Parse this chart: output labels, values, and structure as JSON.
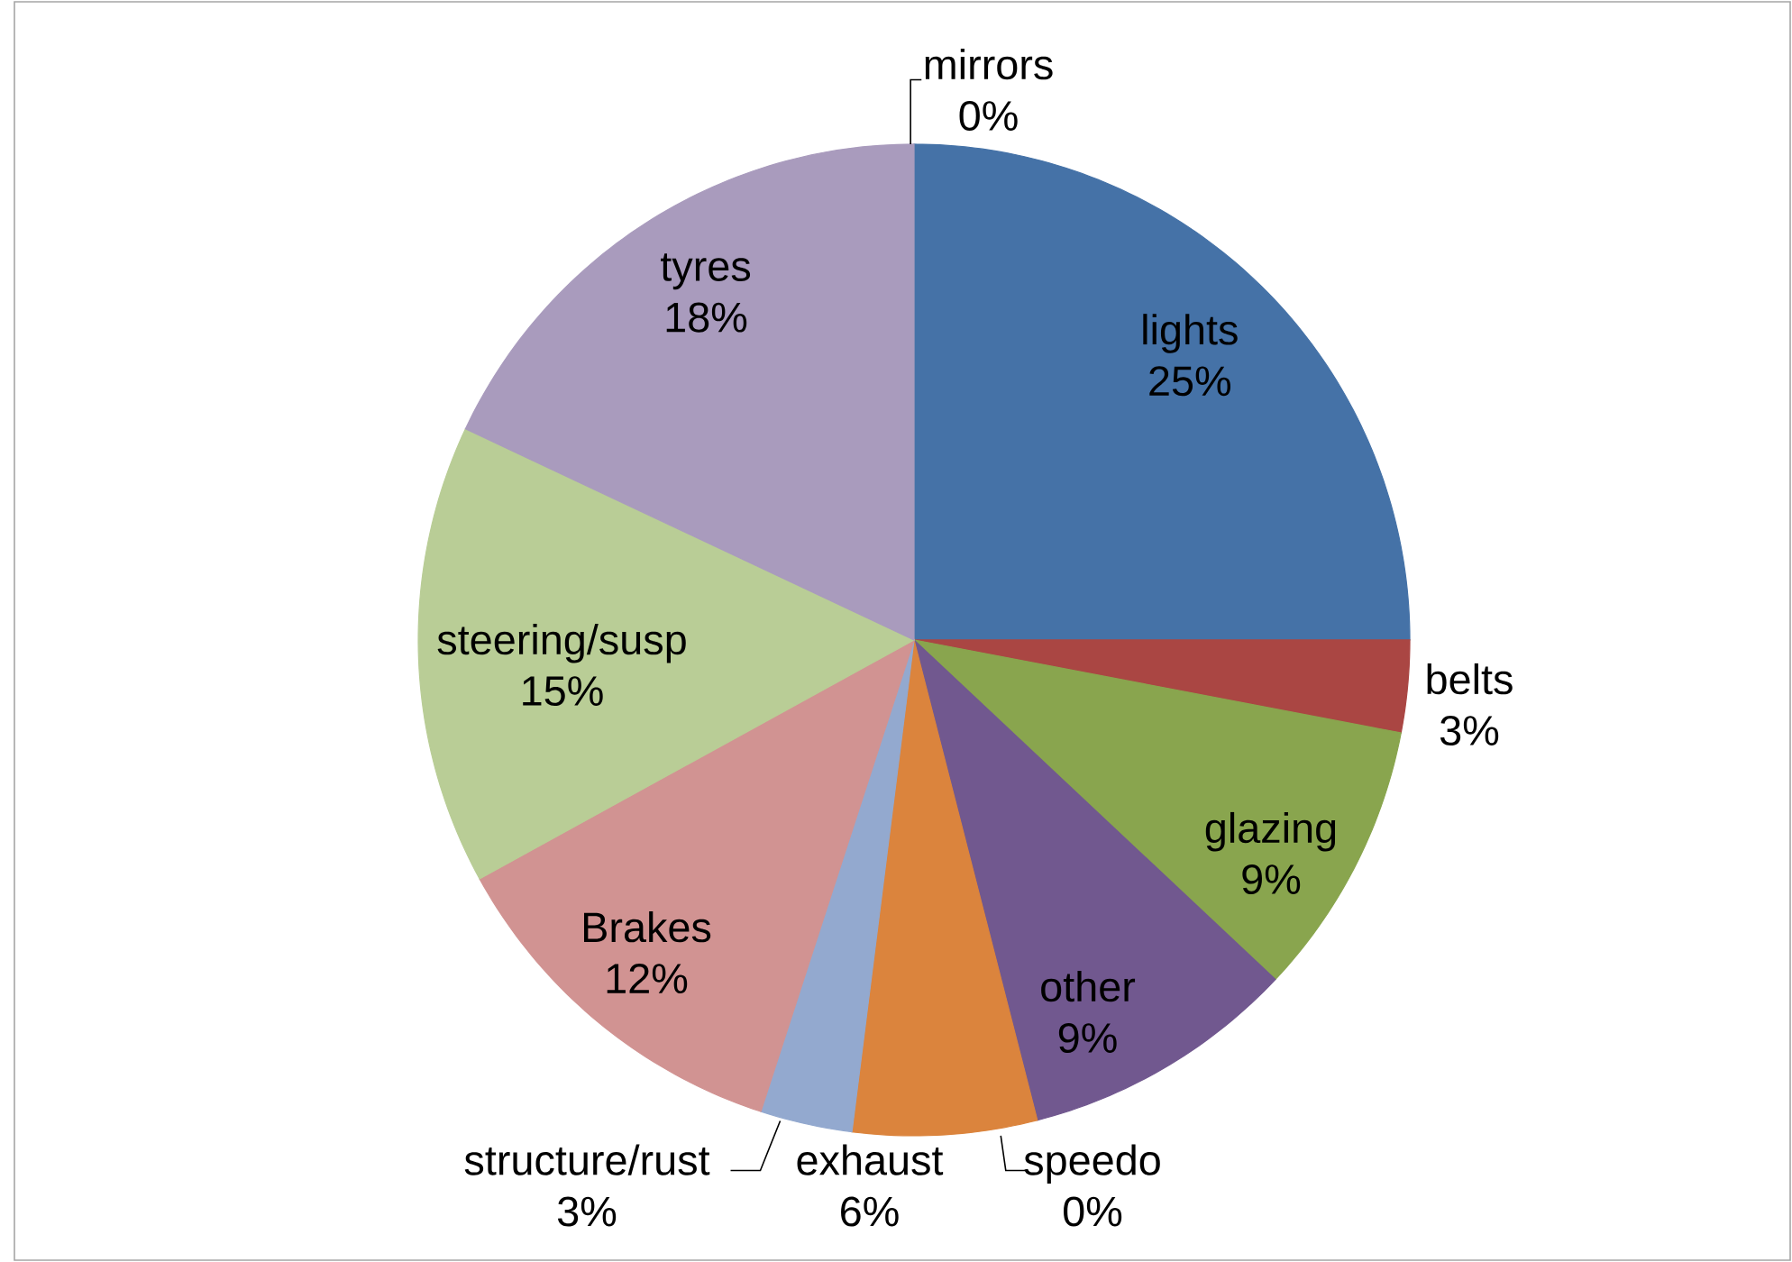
{
  "chart_data": {
    "type": "pie",
    "categories": [
      "lights",
      "belts",
      "glazing",
      "other",
      "speedo",
      "exhaust",
      "structure/rust",
      "Brakes",
      "steering/susp",
      "tyres",
      "mirrors"
    ],
    "values": [
      25,
      3,
      9,
      9,
      0,
      6,
      3,
      12,
      15,
      18,
      0
    ],
    "value_labels": [
      "25%",
      "3%",
      "9%",
      "9%",
      "0%",
      "6%",
      "3%",
      "12%",
      "15%",
      "18%",
      "0%"
    ],
    "colors": [
      "#4572a7",
      "#aa4643",
      "#89a54e",
      "#71588f",
      "#4198af",
      "#db843d",
      "#93a9cf",
      "#d19392",
      "#b9cd96",
      "#a99bbd",
      "#4bacc6"
    ]
  }
}
